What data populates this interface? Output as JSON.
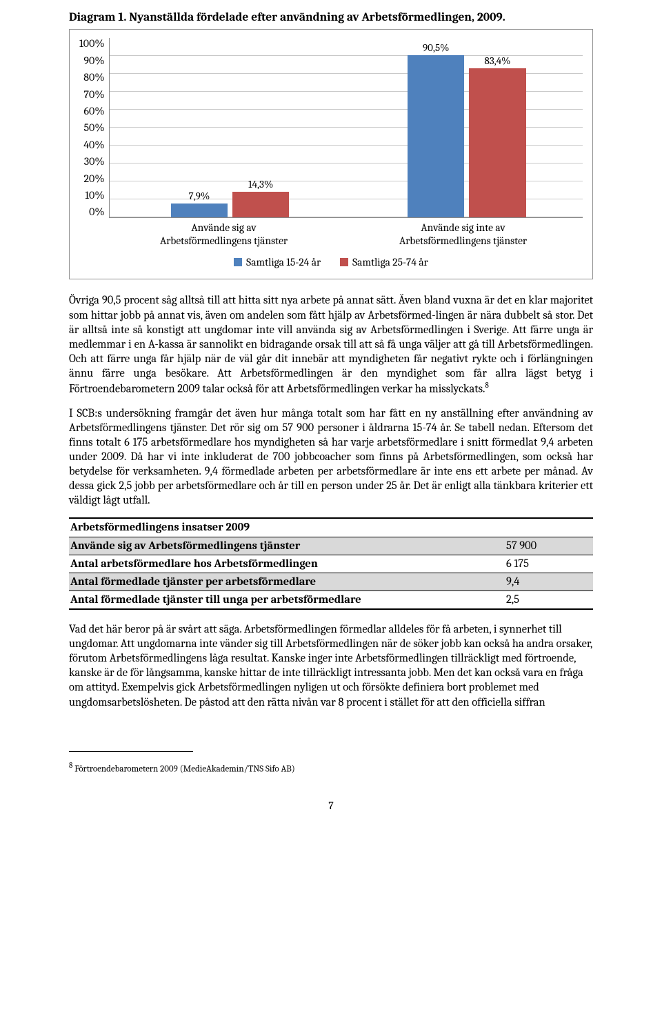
{
  "title": "Diagram 1. Nyanställda fördelade efter användning av Arbetsförmedlingen, 2009.",
  "chart": {
    "type": "bar",
    "ylim": [
      0,
      100
    ],
    "ytick_step": 10,
    "yticks": [
      "100%",
      "90%",
      "80%",
      "70%",
      "60%",
      "50%",
      "40%",
      "30%",
      "20%",
      "10%",
      "0%"
    ],
    "categories": [
      "Använde sig av\nArbetsförmedlingens tjänster",
      "Använde sig inte av\nArbetsförmedlingens tjänster"
    ],
    "series": [
      {
        "name": "Samtliga 15-24 år",
        "color": "#4f81bd",
        "values": [
          7.9,
          90.5
        ],
        "labels": [
          "7,9%",
          "90,5%"
        ]
      },
      {
        "name": "Samtliga 25-74 år",
        "color": "#c0504d",
        "values": [
          14.3,
          83.4
        ],
        "labels": [
          "14,3%",
          "83,4%"
        ]
      }
    ],
    "grid_color": "#c9c9c9",
    "axis_color": "#888888",
    "frame_color": "#919191",
    "label_fontsize": 15.5,
    "bar_width_pct": 24
  },
  "para1": "Övriga 90,5 procent såg alltså till att hitta sitt nya arbete på annat sätt. Även bland vuxna är det en klar majoritet som hittar jobb på annat vis, även om andelen som fått hjälp av Arbetsförmed-lingen är nära dubbelt så stor. Det är alltså inte så konstigt att ungdomar inte vill använda sig av Arbetsförmedlingen i Sverige. Att färre unga är medlemmar i en A-kassa är sannolikt en bidragande orsak till att så få unga väljer att gå till Arbetsförmedlingen. Och att färre unga får hjälp när de väl går dit innebär att myndigheten får negativt rykte och i förlängningen ännu färre unga besökare. Att Arbetsförmedlingen är den myndighet som får allra lägst betyg i Förtroendebarometern 2009 talar också för att Arbetsförmedlingen verkar ha misslyckats.",
  "para1_note": "8",
  "para2": "I SCB:s undersökning framgår det även hur många totalt som har fått en ny anställning efter användning av Arbetsförmedlingens tjänster. Det rör sig om 57 900 personer i åldrarna 15-74 år. Se tabell nedan. Eftersom det finns totalt 6 175 arbetsförmedlare hos myndigheten så har varje arbetsförmedlare i snitt förmedlat 9,4 arbeten under 2009. Då har vi inte inkluderat de 700 jobbcoacher som finns på Arbetsförmedlingen, som också har betydelse för verksamheten. 9,4 förmedlade arbeten per arbetsförmedlare är inte ens ett arbete per månad. Av dessa gick 2,5 jobb per arbetsförmedlare och år till en person under 25 år. Det är enligt alla tänkbara kriterier ett väldigt lågt utfall.",
  "table": {
    "header": "Arbetsförmedlingens insatser 2009",
    "rows": [
      {
        "label": "Använde sig av Arbetsförmedlingens tjänster",
        "value": "57 900",
        "shade": true
      },
      {
        "label": "Antal arbetsförmedlare hos Arbetsförmedlingen",
        "value": "6 175",
        "shade": false
      },
      {
        "label": "Antal förmedlade tjänster per arbetsförmedlare",
        "value": "9,4",
        "shade": true
      },
      {
        "label": "Antal förmedlade tjänster till unga per arbetsförmedlare",
        "value": "2,5",
        "shade": false
      }
    ]
  },
  "para3": "Vad det här beror på är svårt att säga. Arbetsförmedlingen förmedlar alldeles för få arbeten, i synnerhet till ungdomar. Att ungdomarna inte vänder sig till Arbetsförmedlingen när de söker jobb kan också ha andra orsaker, förutom Arbetsförmedlingens låga resultat. Kanske inger inte Arbetsförmedlingen tillräckligt med förtroende, kanske är de för långsamma, kanske hittar de inte tillräckligt intressanta jobb. Men det kan också vara en fråga om attityd. Exempelvis gick Arbetsförmedlingen nyligen ut och försökte definiera bort problemet med ungdomsarbetslösheten. De påstod att den rätta nivån var 8 procent i stället för att den officiella siffran",
  "footnote": {
    "num": "8",
    "text": " Förtroendebarometern 2009 (MedieAkademin/TNS Sifo AB)"
  },
  "page_number": "7"
}
